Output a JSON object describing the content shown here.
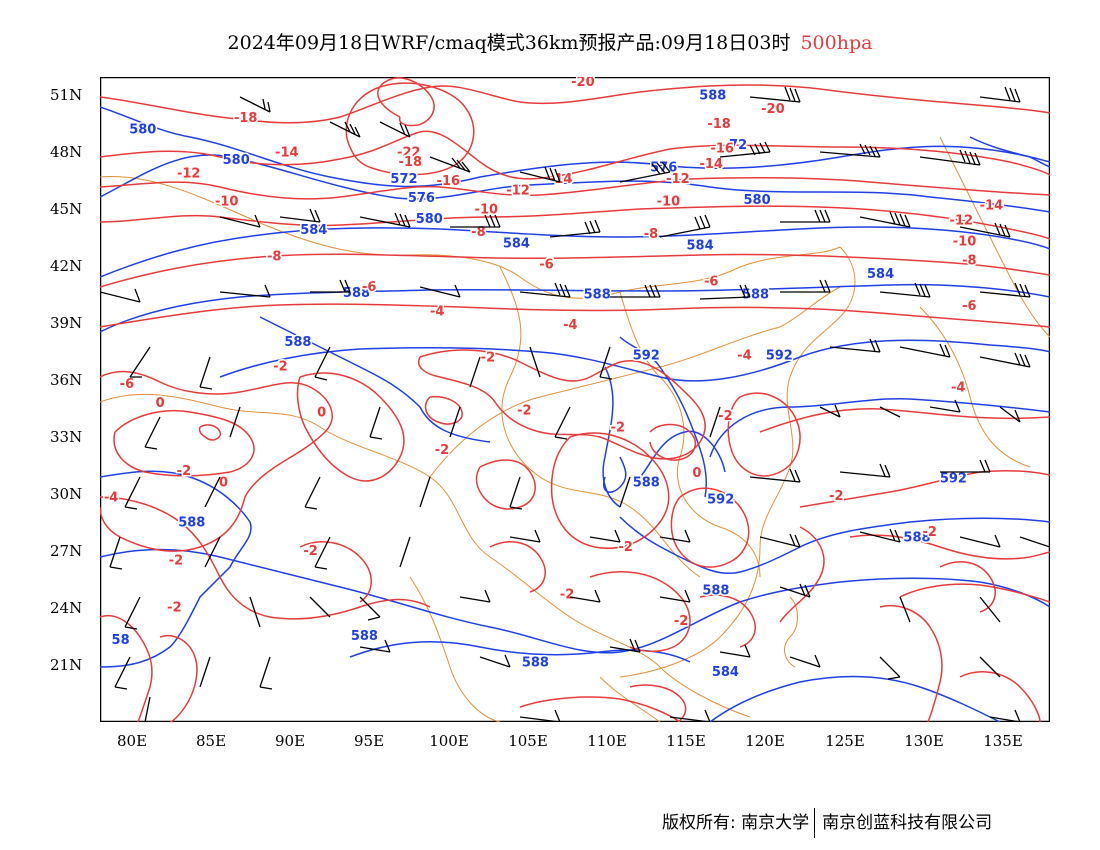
{
  "title": {
    "main": "2024年09月18日WRF/cmaq模式36km预报产品:09月18日03时",
    "level": "500hpa",
    "level_color": "#e83a3a"
  },
  "axes": {
    "latitude_labels": [
      "51N",
      "48N",
      "45N",
      "42N",
      "39N",
      "36N",
      "33N",
      "30N",
      "27N",
      "24N",
      "21N"
    ],
    "longitude_labels": [
      "80E",
      "85E",
      "90E",
      "95E",
      "100E",
      "105E",
      "110E",
      "115E",
      "120E",
      "125E",
      "130E",
      "135E"
    ]
  },
  "map": {
    "extent": {
      "lon_min": 78,
      "lon_max": 138,
      "lat_min": 18,
      "lat_max": 52
    },
    "colors": {
      "height_contour": "#1f3fe6",
      "temperature_contour": "#e83a3a",
      "boundary": "#e0913a",
      "wind_barb": "#000000"
    },
    "height_labels": [
      {
        "text": "580",
        "lon": 80.7,
        "lat": 49.2
      },
      {
        "text": "580",
        "lon": 86.6,
        "lat": 47.6
      },
      {
        "text": "572",
        "lon": 97.2,
        "lat": 46.6
      },
      {
        "text": "576",
        "lon": 98.3,
        "lat": 45.6
      },
      {
        "text": "584",
        "lon": 91.5,
        "lat": 43.9
      },
      {
        "text": "580",
        "lon": 98.8,
        "lat": 44.5
      },
      {
        "text": "584",
        "lon": 104.3,
        "lat": 43.2
      },
      {
        "text": "588",
        "lon": 94.2,
        "lat": 40.6
      },
      {
        "text": "588",
        "lon": 109.4,
        "lat": 40.5
      },
      {
        "text": "588",
        "lon": 90.5,
        "lat": 38.0
      },
      {
        "text": "592",
        "lon": 112.5,
        "lat": 37.3
      },
      {
        "text": "588",
        "lon": 112.5,
        "lat": 30.6
      },
      {
        "text": "592",
        "lon": 117.2,
        "lat": 29.7
      },
      {
        "text": "588",
        "lon": 83.8,
        "lat": 28.5
      },
      {
        "text": "58",
        "lon": 79.3,
        "lat": 22.3
      },
      {
        "text": "588",
        "lon": 94.7,
        "lat": 22.5
      },
      {
        "text": "588",
        "lon": 105.5,
        "lat": 21.1
      },
      {
        "text": "588",
        "lon": 119.4,
        "lat": 40.5
      },
      {
        "text": "592",
        "lon": 120.9,
        "lat": 37.3
      },
      {
        "text": "584",
        "lon": 127.3,
        "lat": 41.6
      },
      {
        "text": "588",
        "lon": 116.9,
        "lat": 24.9
      },
      {
        "text": "588",
        "lon": 129.6,
        "lat": 27.7
      },
      {
        "text": "592",
        "lon": 131.9,
        "lat": 30.8
      },
      {
        "text": "584",
        "lon": 117.5,
        "lat": 20.6
      },
      {
        "text": "584",
        "lon": 115.9,
        "lat": 43.1
      },
      {
        "text": "580",
        "lon": 119.5,
        "lat": 45.5
      },
      {
        "text": "576",
        "lon": 113.6,
        "lat": 47.2
      },
      {
        "text": "588",
        "lon": 116.7,
        "lat": 51.0
      },
      {
        "text": "72",
        "lon": 118.3,
        "lat": 48.4
      }
    ],
    "temperature_labels": [
      {
        "text": "-20",
        "lon": 108.5,
        "lat": 51.7
      },
      {
        "text": "-18",
        "lon": 87.2,
        "lat": 49.8
      },
      {
        "text": "-14",
        "lon": 89.8,
        "lat": 48.0
      },
      {
        "text": "-22",
        "lon": 97.5,
        "lat": 48.0
      },
      {
        "text": "-18",
        "lon": 97.6,
        "lat": 47.5
      },
      {
        "text": "-16",
        "lon": 100.0,
        "lat": 46.5
      },
      {
        "text": "-12",
        "lon": 83.6,
        "lat": 46.9
      },
      {
        "text": "-12",
        "lon": 104.4,
        "lat": 46.0
      },
      {
        "text": "-14",
        "lon": 107.1,
        "lat": 46.6
      },
      {
        "text": "-10",
        "lon": 86.0,
        "lat": 45.4
      },
      {
        "text": "-10",
        "lon": 102.4,
        "lat": 45.0
      },
      {
        "text": "-8",
        "lon": 101.9,
        "lat": 43.8
      },
      {
        "text": "-8",
        "lon": 89.0,
        "lat": 42.5
      },
      {
        "text": "-6",
        "lon": 95.0,
        "lat": 40.9
      },
      {
        "text": "-6",
        "lon": 106.2,
        "lat": 42.1
      },
      {
        "text": "-4",
        "lon": 99.3,
        "lat": 39.6
      },
      {
        "text": "-4",
        "lon": 107.7,
        "lat": 38.9
      },
      {
        "text": "-2",
        "lon": 89.4,
        "lat": 36.7
      },
      {
        "text": "-2",
        "lon": 102.5,
        "lat": 37.2
      },
      {
        "text": "-6",
        "lon": 79.7,
        "lat": 35.8
      },
      {
        "text": "0",
        "lon": 81.8,
        "lat": 34.8
      },
      {
        "text": "0",
        "lon": 92.0,
        "lat": 34.3
      },
      {
        "text": "-2",
        "lon": 104.8,
        "lat": 34.4
      },
      {
        "text": "-2",
        "lon": 99.6,
        "lat": 32.3
      },
      {
        "text": "-2",
        "lon": 110.7,
        "lat": 33.5
      },
      {
        "text": "-2",
        "lon": 83.3,
        "lat": 31.2
      },
      {
        "text": "0",
        "lon": 85.8,
        "lat": 30.6
      },
      {
        "text": "-4",
        "lon": 78.7,
        "lat": 29.8
      },
      {
        "text": "-2",
        "lon": 91.3,
        "lat": 27.0
      },
      {
        "text": "-2",
        "lon": 82.8,
        "lat": 26.5
      },
      {
        "text": "-2",
        "lon": 82.7,
        "lat": 24.0
      },
      {
        "text": "-2",
        "lon": 107.5,
        "lat": 24.7
      },
      {
        "text": "-2",
        "lon": 111.2,
        "lat": 27.2
      },
      {
        "text": "-2",
        "lon": 114.7,
        "lat": 23.3
      },
      {
        "text": "-2",
        "lon": 117.5,
        "lat": 34.1
      },
      {
        "text": "0",
        "lon": 115.7,
        "lat": 31.1
      },
      {
        "text": "-2",
        "lon": 124.5,
        "lat": 29.9
      },
      {
        "text": "-2",
        "lon": 130.4,
        "lat": 28.0
      },
      {
        "text": "-4",
        "lon": 118.7,
        "lat": 37.3
      },
      {
        "text": "-4",
        "lon": 132.2,
        "lat": 35.6
      },
      {
        "text": "-6",
        "lon": 116.6,
        "lat": 41.2
      },
      {
        "text": "-6",
        "lon": 132.9,
        "lat": 39.9
      },
      {
        "text": "-8",
        "lon": 132.9,
        "lat": 42.3
      },
      {
        "text": "-10",
        "lon": 113.9,
        "lat": 45.4
      },
      {
        "text": "-10",
        "lon": 132.6,
        "lat": 43.3
      },
      {
        "text": "-12",
        "lon": 114.5,
        "lat": 46.6
      },
      {
        "text": "-12",
        "lon": 132.4,
        "lat": 44.4
      },
      {
        "text": "-14",
        "lon": 116.6,
        "lat": 47.4
      },
      {
        "text": "-14",
        "lon": 134.3,
        "lat": 45.2
      },
      {
        "text": "-16",
        "lon": 117.3,
        "lat": 48.2
      },
      {
        "text": "-18",
        "lon": 117.1,
        "lat": 49.5
      },
      {
        "text": "-20",
        "lon": 120.5,
        "lat": 50.3
      },
      {
        "text": "-8",
        "lon": 112.8,
        "lat": 43.7
      }
    ]
  },
  "footer": {
    "copyright": "版权所有: 南京大学",
    "company": "南京创蓝科技有限公司"
  }
}
